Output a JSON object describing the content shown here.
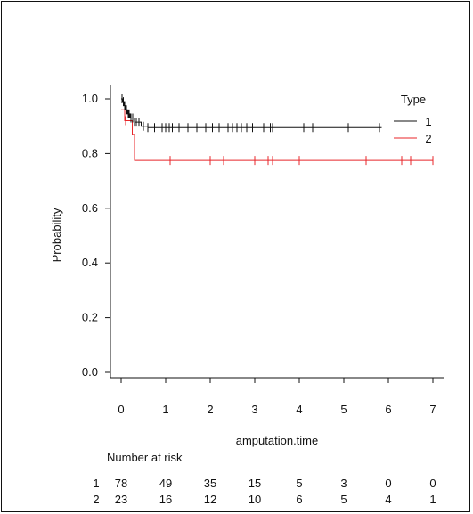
{
  "chart_data": {
    "type": "line",
    "subtype": "kaplan-meier",
    "xlabel": "amputation.time",
    "ylabel": "Probability",
    "xlim": [
      0,
      7
    ],
    "ylim": [
      0,
      1.0
    ],
    "x_ticks": [
      0,
      1,
      2,
      3,
      4,
      5,
      6,
      7
    ],
    "y_ticks": [
      0.0,
      0.2,
      0.4,
      0.6,
      0.8,
      1.0
    ],
    "y_tick_labels": [
      "0.0",
      "0.2",
      "0.4",
      "0.6",
      "0.8",
      "1.0"
    ],
    "grid": false,
    "legend": {
      "title": "Type",
      "position": "top-right"
    },
    "series": [
      {
        "name": "1",
        "color": "#111111",
        "steps": [
          [
            0,
            1.0
          ],
          [
            0.03,
            0.99
          ],
          [
            0.06,
            0.975
          ],
          [
            0.1,
            0.96
          ],
          [
            0.14,
            0.945
          ],
          [
            0.2,
            0.93
          ],
          [
            0.3,
            0.915
          ],
          [
            0.45,
            0.9
          ],
          [
            0.6,
            0.895
          ],
          [
            5.85,
            0.895
          ]
        ],
        "censored": [
          0.02,
          0.05,
          0.08,
          0.12,
          0.16,
          0.18,
          0.22,
          0.26,
          0.3,
          0.34,
          0.4,
          0.5,
          0.6,
          0.75,
          0.85,
          0.92,
          1.0,
          1.08,
          1.15,
          1.3,
          1.5,
          1.7,
          1.9,
          2.05,
          2.2,
          2.4,
          2.5,
          2.6,
          2.7,
          2.82,
          2.95,
          3.05,
          3.2,
          3.35,
          3.4,
          4.1,
          4.3,
          5.1,
          5.8
        ]
      },
      {
        "name": "2",
        "color": "#e8262a",
        "steps": [
          [
            0,
            0.96
          ],
          [
            0.08,
            0.92
          ],
          [
            0.25,
            0.87
          ],
          [
            0.3,
            0.775
          ],
          [
            7.0,
            0.775
          ]
        ],
        "censored": [
          0.1,
          1.1,
          2.0,
          2.3,
          3.0,
          3.3,
          3.4,
          4.0,
          5.5,
          6.3,
          6.5,
          7.0
        ]
      }
    ],
    "risk_table": {
      "title": "Number at risk",
      "times": [
        0,
        1,
        2,
        3,
        4,
        5,
        6,
        7
      ],
      "rows": [
        {
          "label": "1",
          "values": [
            "78",
            "49",
            "35",
            "15",
            "5",
            "3",
            "0",
            "0"
          ]
        },
        {
          "label": "2",
          "values": [
            "23",
            "16",
            "12",
            "10",
            "6",
            "5",
            "4",
            "1"
          ]
        }
      ]
    }
  }
}
